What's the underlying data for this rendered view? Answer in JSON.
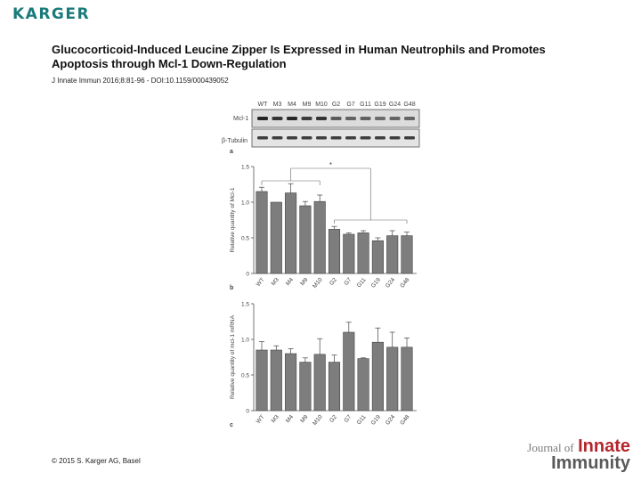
{
  "header": {
    "publisher_logo": "KARGER",
    "title": "Glucocorticoid-Induced Leucine Zipper Is Expressed in Human Neutrophils and Promotes Apoptosis through Mcl-1 Down-Regulation",
    "citation": "J Innate Immun 2016;8:81-96 - DOI:10.1159/000439052"
  },
  "footer": {
    "copyright": "© 2015 S. Karger AG, Basel",
    "journal_prefix": "Journal of",
    "journal_word1": "Innate",
    "journal_word2": "Immunity"
  },
  "blot": {
    "lanes": [
      "WT",
      "M3",
      "M4",
      "M9",
      "M10",
      "G2",
      "G7",
      "G11",
      "G19",
      "G24",
      "G48"
    ],
    "rows": [
      "Mcl-1",
      "β-Tubulin"
    ],
    "panel_label": "a"
  },
  "chart_data": [
    {
      "type": "bar",
      "panel": "b",
      "categories": [
        "WT",
        "M3",
        "M4",
        "M9",
        "M10",
        "G2",
        "G7",
        "G11",
        "G19",
        "G24",
        "G48"
      ],
      "values": [
        1.15,
        1.0,
        1.13,
        0.95,
        1.01,
        0.62,
        0.55,
        0.57,
        0.46,
        0.53,
        0.53
      ],
      "errors": [
        0.06,
        0.0,
        0.13,
        0.06,
        0.09,
        0.04,
        0.02,
        0.03,
        0.04,
        0.07,
        0.05
      ],
      "ylabel": "Relative quantity of Mcl-1",
      "ylim": [
        0,
        1.5
      ],
      "yticks": [
        "0",
        "0.5",
        "1.0",
        "1.5"
      ],
      "annotation": "*"
    },
    {
      "type": "bar",
      "panel": "c",
      "categories": [
        "WT",
        "M3",
        "M4",
        "M9",
        "M10",
        "G2",
        "G7",
        "G11",
        "G19",
        "G24",
        "G48"
      ],
      "values": [
        0.85,
        0.85,
        0.8,
        0.68,
        0.79,
        0.68,
        1.1,
        0.73,
        0.96,
        0.89,
        0.89
      ],
      "errors": [
        0.12,
        0.06,
        0.07,
        0.06,
        0.22,
        0.1,
        0.14,
        0.01,
        0.2,
        0.21,
        0.13
      ],
      "ylabel": "Relative quantity of mcl-1 mRNA",
      "ylim": [
        0,
        1.5
      ],
      "yticks": [
        "0",
        "0.5",
        "1.0",
        "1.5"
      ]
    }
  ]
}
